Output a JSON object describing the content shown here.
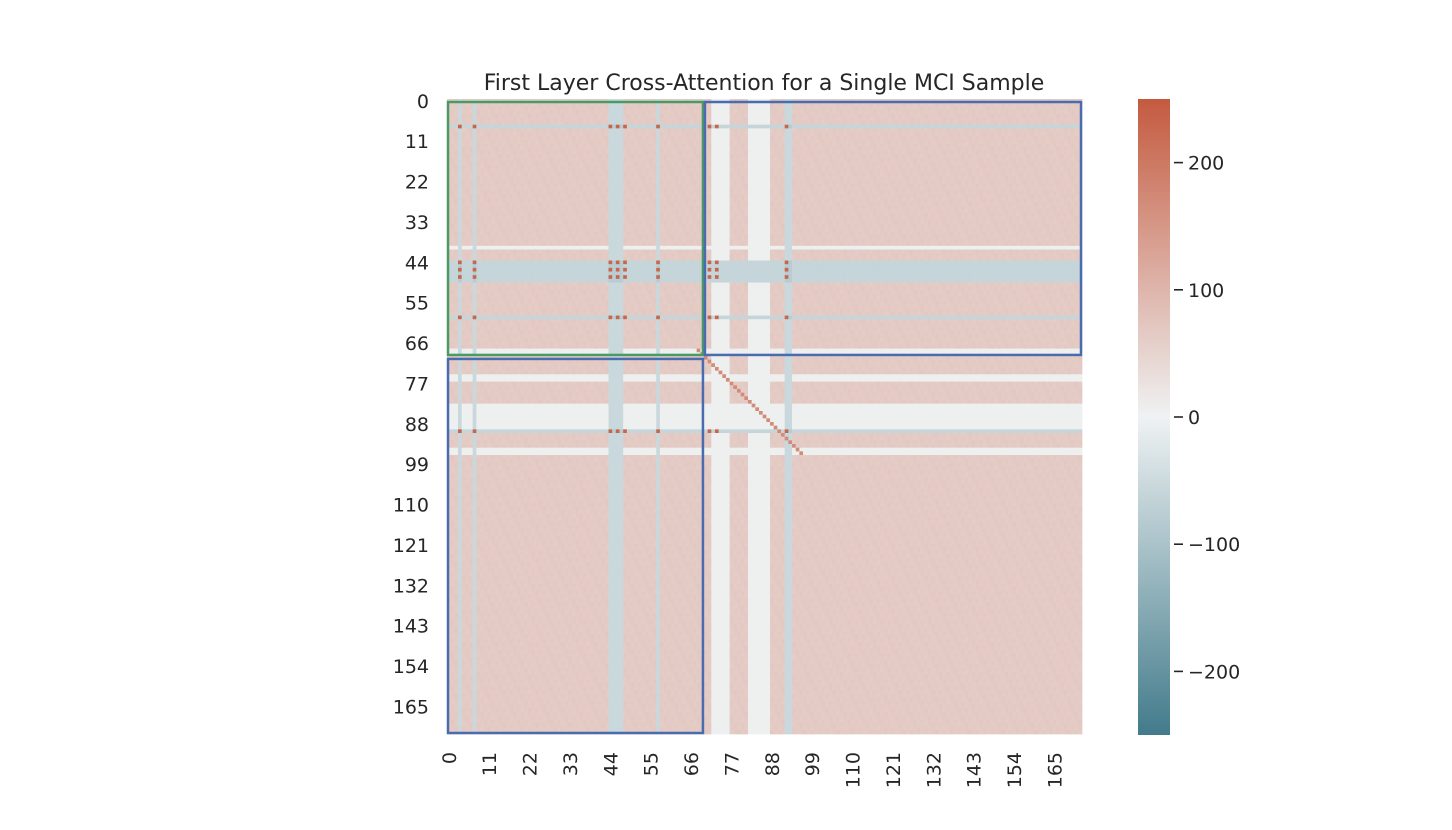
{
  "chart_data": {
    "type": "heatmap",
    "title": "First Layer Cross-Attention for a Single MCI Sample",
    "xlabel": "",
    "ylabel": "",
    "n_rows": 173,
    "n_cols": 173,
    "x_tick_labels": [
      "0",
      "11",
      "22",
      "33",
      "44",
      "55",
      "66",
      "77",
      "88",
      "99",
      "110",
      "121",
      "132",
      "143",
      "154",
      "165"
    ],
    "y_tick_labels": [
      "0",
      "11",
      "22",
      "33",
      "44",
      "55",
      "66",
      "77",
      "88",
      "99",
      "110",
      "121",
      "132",
      "143",
      "154",
      "165"
    ],
    "colorbar": {
      "min": -250,
      "max": 250,
      "ticks": [
        200,
        100,
        0,
        -100,
        -200
      ],
      "tick_labels": [
        "200",
        "100",
        "0",
        "−100",
        "−200"
      ],
      "colors": {
        "negative": "#427b8b",
        "neutral": "#eff2f3",
        "positive": "#c45a3f"
      }
    },
    "value_model": {
      "base_value": 65,
      "negative_columns": [
        [
          3,
          3
        ],
        [
          7,
          7
        ],
        [
          44,
          47
        ],
        [
          57,
          57
        ],
        [
          92,
          93
        ]
      ],
      "negative_column_value": -55,
      "light_columns": [
        [
          72,
          76
        ],
        [
          82,
          87
        ]
      ],
      "light_column_value": 5,
      "negative_rows": [
        [
          7,
          7
        ],
        [
          44,
          49
        ],
        [
          59,
          59
        ],
        [
          90,
          90
        ]
      ],
      "negative_row_value": -60,
      "light_rows": [
        [
          40,
          40
        ],
        [
          68,
          69
        ],
        [
          75,
          76
        ],
        [
          83,
          90
        ],
        [
          95,
          96
        ]
      ],
      "light_row_value": 5,
      "hot_columns": [
        3,
        7,
        44,
        46,
        48,
        57,
        71,
        73,
        92
      ],
      "hot_rows": [
        7,
        44,
        46,
        48,
        59,
        90
      ],
      "hot_value": 230,
      "diagonal_range": [
        68,
        96
      ],
      "diagonal_value": 170
    },
    "regions": [
      {
        "label": "green-box",
        "color": "#4a9a63",
        "row_start": 0,
        "row_end": 70,
        "col_start": 0,
        "col_end": 70
      },
      {
        "label": "blue-box-top-right",
        "color": "#4a6bae",
        "row_start": 0,
        "row_end": 70,
        "col_start": 70,
        "col_end": 173
      },
      {
        "label": "blue-box-bottom-left",
        "color": "#4a6bae",
        "row_start": 70,
        "row_end": 173,
        "col_start": 0,
        "col_end": 70
      }
    ]
  }
}
